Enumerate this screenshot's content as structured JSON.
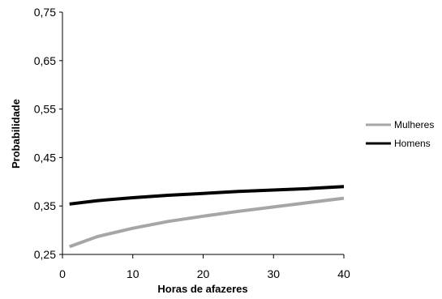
{
  "chart_data": {
    "type": "line",
    "title": "",
    "xlabel": "Horas de afazeres",
    "ylabel": "Probabilidade",
    "xlim": [
      0,
      40
    ],
    "ylim": [
      0.25,
      0.75
    ],
    "x_ticks": [
      "0",
      "10",
      "20",
      "30",
      "40"
    ],
    "y_ticks": [
      "0,25",
      "0,35",
      "0,45",
      "0,55",
      "0,65",
      "0,75"
    ],
    "x_tick_values": [
      0,
      10,
      20,
      30,
      40
    ],
    "y_tick_values": [
      0.25,
      0.35,
      0.45,
      0.55,
      0.65,
      0.75
    ],
    "grid": false,
    "legend_position": "right",
    "x": [
      1,
      5,
      10,
      15,
      20,
      25,
      30,
      35,
      40
    ],
    "series": [
      {
        "name": "Mulheres",
        "color": "#a6a6a6",
        "values": [
          0.266,
          0.287,
          0.304,
          0.318,
          0.329,
          0.339,
          0.348,
          0.357,
          0.366
        ]
      },
      {
        "name": "Homens",
        "color": "#000000",
        "values": [
          0.354,
          0.361,
          0.367,
          0.372,
          0.376,
          0.38,
          0.383,
          0.386,
          0.39
        ]
      }
    ]
  }
}
